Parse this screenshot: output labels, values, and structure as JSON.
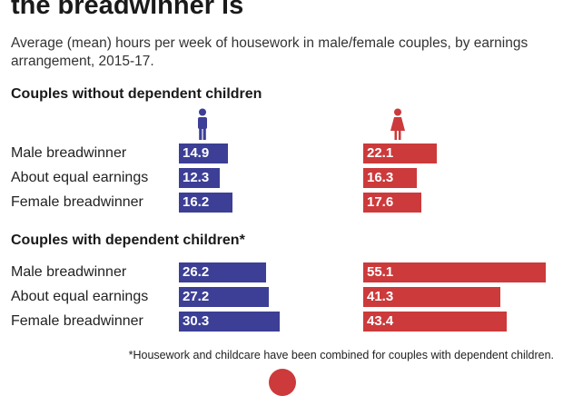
{
  "title": "the breadwinner is",
  "subtitle": "Average (mean) hours per week of housework in male/female couples, by earnings arrangement, 2015-17.",
  "footnote": "*Housework and childcare have been combined for couples with dependent children.",
  "colors": {
    "male": "#3c3f95",
    "female": "#cc3a3b"
  },
  "icons": {
    "male": "male-person-icon",
    "female": "female-person-icon"
  },
  "chart_data": {
    "type": "bar",
    "orientation": "horizontal",
    "panels": [
      {
        "title": "Couples without dependent children",
        "categories": [
          "Male breadwinner",
          "About equal earnings",
          "Female breadwinner"
        ],
        "series": [
          {
            "values": [
              14.9,
              12.3,
              16.2
            ],
            "color": "#3c3f95"
          },
          {
            "values": [
              22.1,
              16.3,
              17.6
            ],
            "color": "#cc3a3b"
          }
        ]
      },
      {
        "title": "Couples with dependent children*",
        "categories": [
          "Male breadwinner",
          "About equal earnings",
          "Female breadwinner"
        ],
        "series": [
          {
            "values": [
              26.2,
              27.2,
              30.3
            ],
            "color": "#3c3f95"
          },
          {
            "values": [
              55.1,
              41.3,
              43.4
            ],
            "color": "#cc3a3b"
          }
        ]
      }
    ],
    "grid": false,
    "legend": "icons above columns"
  }
}
